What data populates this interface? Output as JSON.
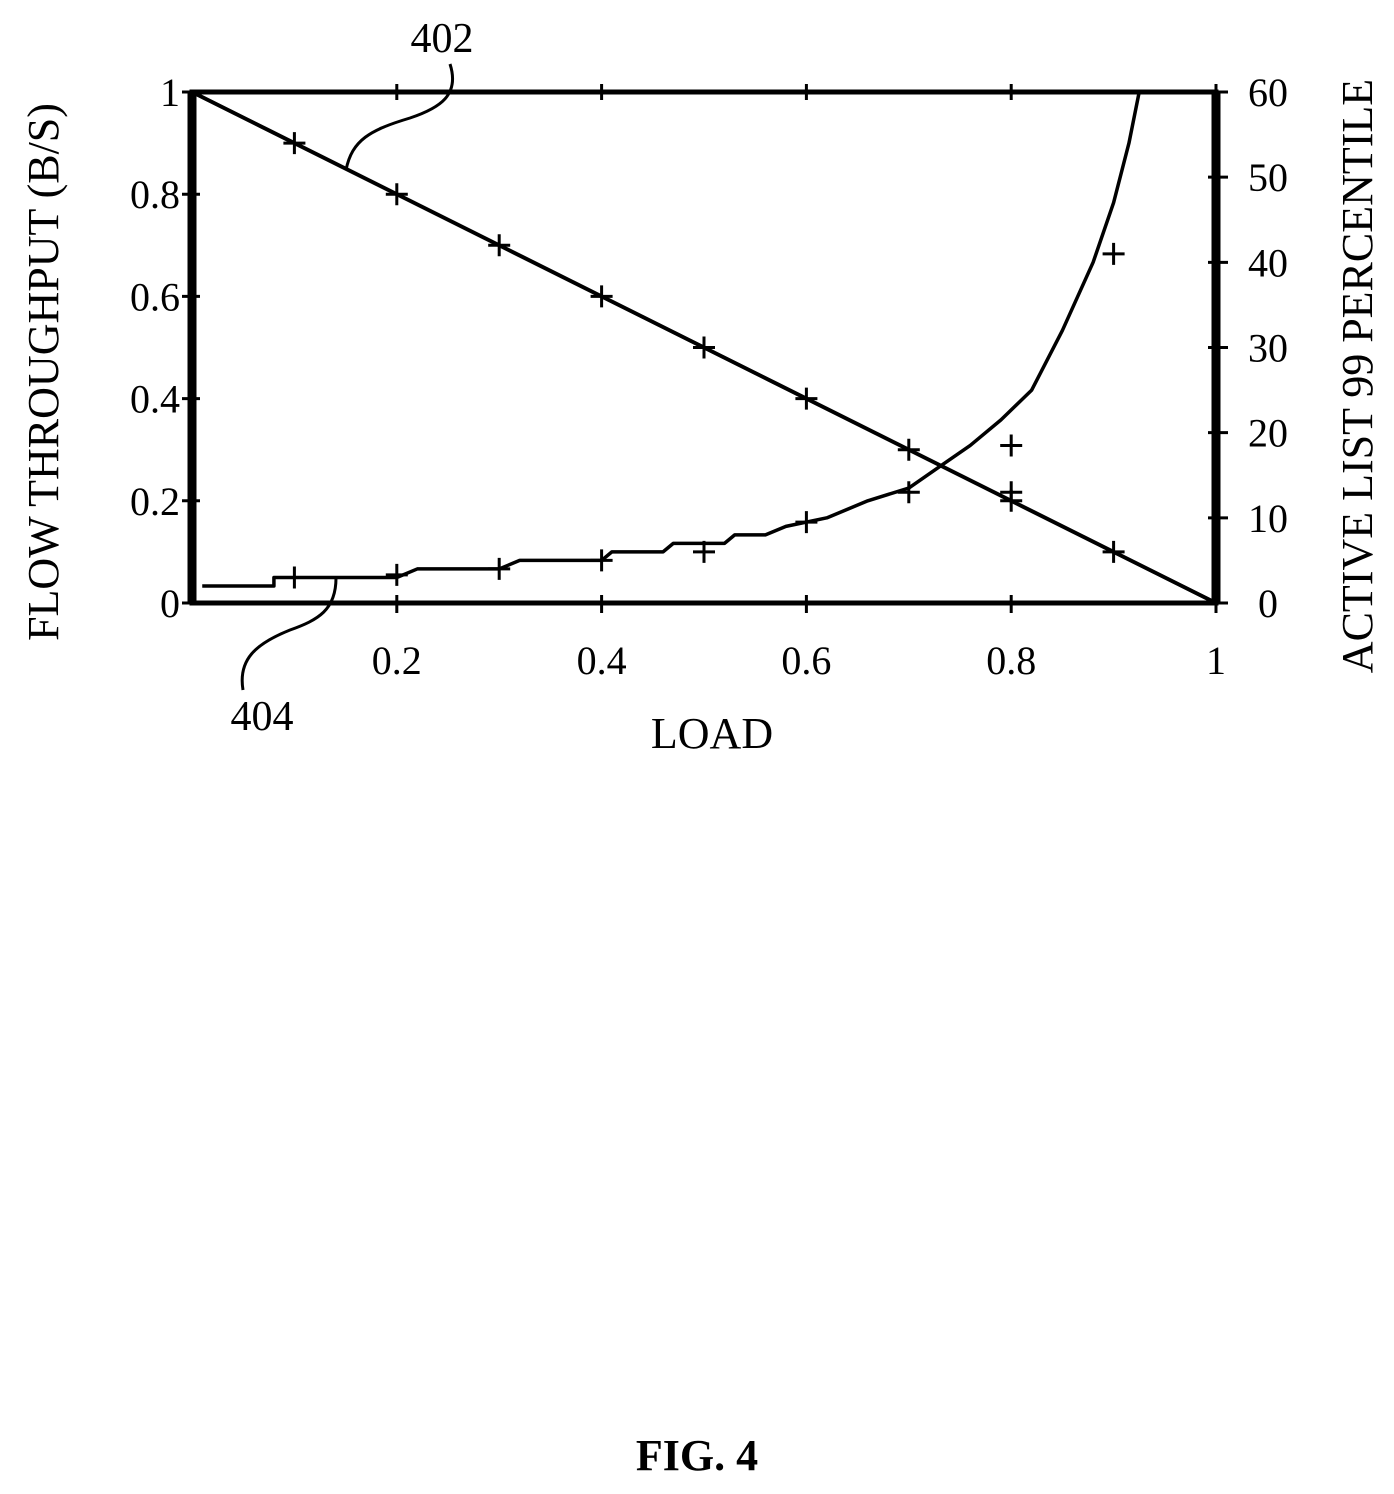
{
  "chart_data": {
    "type": "line",
    "xlabel": "LOAD",
    "ylabel": "FLOW THROUGHPUT (B/S)",
    "y2label": "ACTIVE LIST 99 PERCENTILE",
    "xlim": [
      0,
      1
    ],
    "ylim": [
      0,
      1
    ],
    "y2lim": [
      0,
      60
    ],
    "x_ticks": [
      "0.2",
      "0.4",
      "0.6",
      "0.8",
      "1"
    ],
    "y_ticks": [
      "0",
      "0.2",
      "0.4",
      "0.6",
      "0.8",
      "1"
    ],
    "y2_ticks": [
      "0",
      "10",
      "20",
      "30",
      "40",
      "50",
      "60"
    ],
    "grid": false,
    "series": [
      {
        "axis": "left",
        "line_x": [
          0,
          1
        ],
        "line_y": [
          1,
          0
        ],
        "markers": [
          {
            "x": 0.1,
            "y": 0.9
          },
          {
            "x": 0.2,
            "y": 0.8
          },
          {
            "x": 0.3,
            "y": 0.7
          },
          {
            "x": 0.4,
            "y": 0.6
          },
          {
            "x": 0.5,
            "y": 0.5
          },
          {
            "x": 0.6,
            "y": 0.4
          },
          {
            "x": 0.7,
            "y": 0.3
          },
          {
            "x": 0.8,
            "y": 0.2
          },
          {
            "x": 0.9,
            "y": 0.1
          }
        ]
      },
      {
        "axis": "right",
        "line": [
          [
            0.01,
            2
          ],
          [
            0.08,
            2
          ],
          [
            0.08,
            3
          ],
          [
            0.19,
            3
          ],
          [
            0.2,
            3
          ],
          [
            0.22,
            4
          ],
          [
            0.3,
            4
          ],
          [
            0.32,
            5
          ],
          [
            0.4,
            5
          ],
          [
            0.41,
            6
          ],
          [
            0.46,
            6
          ],
          [
            0.47,
            7
          ],
          [
            0.52,
            7
          ],
          [
            0.53,
            8
          ],
          [
            0.56,
            8
          ],
          [
            0.58,
            9
          ],
          [
            0.62,
            10
          ],
          [
            0.66,
            12
          ],
          [
            0.7,
            13.5
          ],
          [
            0.73,
            16
          ],
          [
            0.76,
            18.5
          ],
          [
            0.79,
            21.5
          ],
          [
            0.82,
            25
          ],
          [
            0.85,
            32
          ],
          [
            0.88,
            40
          ],
          [
            0.9,
            47
          ],
          [
            0.915,
            54
          ],
          [
            0.925,
            60
          ]
        ],
        "markers": [
          {
            "x": 0.1,
            "y": 3
          },
          {
            "x": 0.2,
            "y": 3.3
          },
          {
            "x": 0.3,
            "y": 4
          },
          {
            "x": 0.4,
            "y": 5
          },
          {
            "x": 0.5,
            "y": 6
          },
          {
            "x": 0.6,
            "y": 9.5
          },
          {
            "x": 0.7,
            "y": 13
          },
          {
            "x": 0.8,
            "y": 13
          },
          {
            "x": 0.8,
            "y": 18.5
          },
          {
            "x": 0.9,
            "y": 41
          }
        ]
      }
    ],
    "annotations": [
      {
        "text": "402",
        "target": "series-1"
      },
      {
        "text": "404",
        "target": "series-2"
      }
    ]
  },
  "figure": {
    "caption": "FIG. 4"
  }
}
